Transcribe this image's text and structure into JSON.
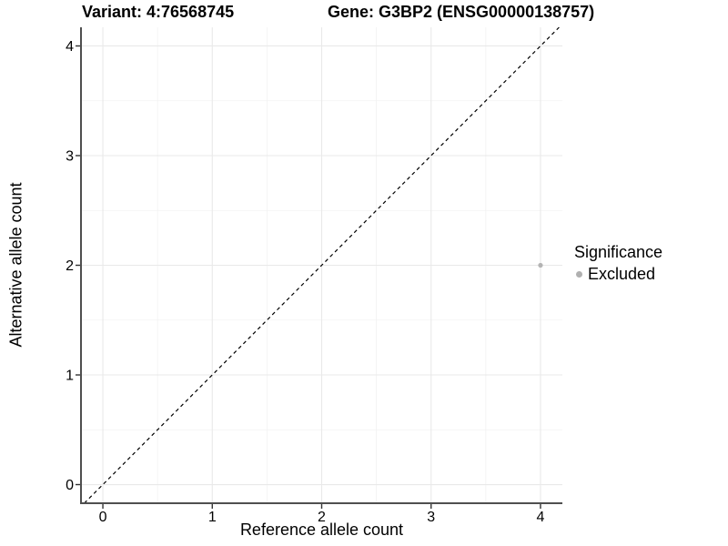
{
  "chart_data": {
    "type": "scatter",
    "title_left": "Variant: 4:76568745",
    "title_right": "Gene: G3BP2 (ENSG00000138757)",
    "xlabel": "Reference allele count",
    "ylabel": "Alternative allele count",
    "xlim": [
      -0.2,
      4.2
    ],
    "ylim": [
      -0.17,
      4.17
    ],
    "xticks": [
      0,
      1,
      2,
      3,
      4
    ],
    "yticks": [
      0,
      1,
      2,
      3,
      4
    ],
    "minor_x": [
      0.5,
      1.5,
      2.5,
      3.5
    ],
    "minor_y": [
      0.5,
      1.5,
      2.5,
      3.5
    ],
    "grid": {
      "major_color": "#e9e9e9",
      "minor_color": "#f2f2f2",
      "visible": true
    },
    "identity_line": {
      "style": "dashed",
      "color": "#000000",
      "equation": "y = x"
    },
    "series": [
      {
        "name": "Excluded",
        "color": "#b4b4b4",
        "points": [
          {
            "x": 4,
            "y": 2
          }
        ]
      }
    ],
    "legend": {
      "position": "right",
      "title": "Significance",
      "entries": [
        {
          "label": "Excluded",
          "color": "#b0b0b0"
        }
      ]
    },
    "axis_color": "#4f4f4f",
    "tick_color": "#333333"
  }
}
